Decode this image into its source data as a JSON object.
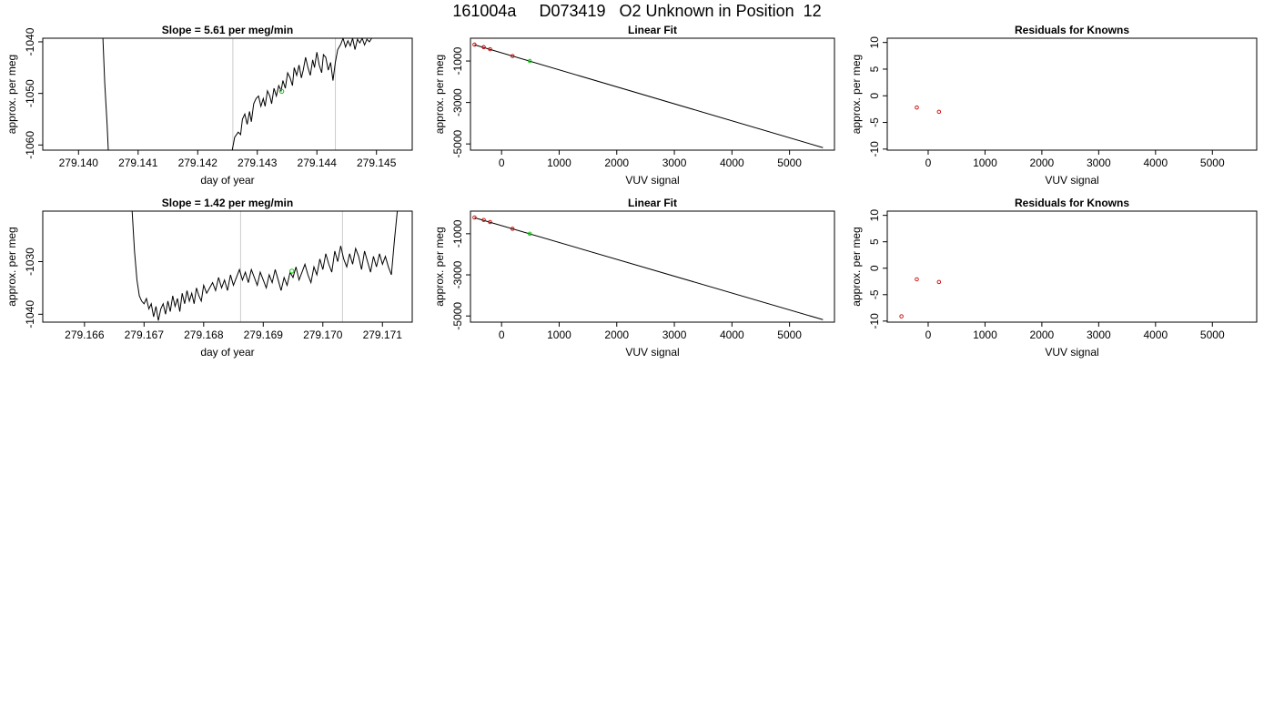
{
  "page": {
    "title": "161004a     D073419   O2 Unknown in Position  12"
  },
  "chart_data": [
    {
      "type": "line",
      "title": "Slope =  5.61  per meg/min",
      "xlabel": "day of year",
      "ylabel": "approx. per meg",
      "xlim": [
        279.1394,
        279.1456
      ],
      "ylim": [
        -1061,
        -1039.3
      ],
      "xticks": [
        279.14,
        279.141,
        279.142,
        279.143,
        279.144,
        279.145
      ],
      "xtick_labels": [
        "279.140",
        "279.141",
        "279.142",
        "279.143",
        "279.144",
        "279.145"
      ],
      "yticks": [
        -1060,
        -1050,
        -1040
      ],
      "ytick_labels": [
        "-1060",
        "-1050",
        "-1040"
      ],
      "vlines": [
        279.14259,
        279.14431
      ],
      "series": [
        {
          "color": "#000000",
          "x": [
            279.14041,
            279.14044,
            279.14048,
            279.1405,
            279.14258,
            279.14262,
            279.14268,
            279.14272,
            279.14275,
            279.14279,
            279.14283,
            279.14287,
            279.1429,
            279.14294,
            279.14298,
            279.14302,
            279.14306,
            279.1431,
            279.14313,
            279.14317,
            279.14321,
            279.14324,
            279.14328,
            279.14332,
            279.14336,
            279.1434,
            279.14343,
            279.14347,
            279.14351,
            279.14355,
            279.14359,
            279.14362,
            279.14366,
            279.1437,
            279.14374,
            279.14377,
            279.14381,
            279.14385,
            279.14389,
            279.14393,
            279.14396,
            279.144,
            279.14404,
            279.14408,
            279.14411,
            279.14415,
            279.14419,
            279.14423,
            279.14427,
            279.14431,
            279.14435,
            279.1444,
            279.14444,
            279.14448,
            279.14452,
            279.14456,
            279.1446,
            279.14464,
            279.14468,
            279.14472,
            279.14476,
            279.1448,
            279.14484,
            279.14488,
            279.14492
          ],
          "y": [
            -1039.3,
            -1048.0,
            -1056.0,
            -1061.0,
            -1061.0,
            -1058.5,
            -1057.5,
            -1058.0,
            -1055.0,
            -1054.0,
            -1056.0,
            -1053.5,
            -1055.5,
            -1052.0,
            -1051.0,
            -1050.5,
            -1052.5,
            -1051.0,
            -1052.5,
            -1049.5,
            -1050.5,
            -1052.0,
            -1049.0,
            -1050.5,
            -1048.5,
            -1049.5,
            -1047.5,
            -1049.0,
            -1046.0,
            -1047.0,
            -1048.5,
            -1045.0,
            -1046.5,
            -1044.5,
            -1047.0,
            -1045.5,
            -1043.0,
            -1045.0,
            -1046.5,
            -1043.5,
            -1045.0,
            -1042.0,
            -1044.5,
            -1046.0,
            -1042.5,
            -1043.0,
            -1045.5,
            -1044.0,
            -1047.5,
            -1044.0,
            -1041.5,
            -1040.5,
            -1039.3,
            -1041.0,
            -1039.8,
            -1040.8,
            -1039.3,
            -1041.5,
            -1039.5,
            -1040.2,
            -1039.3,
            -1040.6,
            -1039.5,
            -1040.0,
            -1039.3
          ]
        }
      ],
      "markers": [
        {
          "x": 279.14341,
          "y": -1049.6,
          "color": "#00cc00",
          "shape": "circle"
        }
      ]
    },
    {
      "type": "scatter",
      "title": "Linear Fit",
      "xlabel": "VUV signal",
      "ylabel": "approx. per meg",
      "xlim": [
        -540,
        5780
      ],
      "ylim": [
        -5300,
        100
      ],
      "xticks": [
        0,
        1000,
        2000,
        3000,
        4000,
        5000
      ],
      "xtick_labels": [
        "0",
        "1000",
        "2000",
        "3000",
        "4000",
        "5000"
      ],
      "yticks": [
        -5000,
        -3000,
        -1000
      ],
      "ytick_labels": [
        "-5000",
        "-3000",
        "-1000"
      ],
      "fit_line": {
        "x": [
          -470,
          5580
        ],
        "y": [
          -220,
          -5180
        ]
      },
      "points": [
        {
          "x": -470,
          "y": -210,
          "color": "#cc0000"
        },
        {
          "x": -310,
          "y": -330,
          "color": "#cc0000"
        },
        {
          "x": -200,
          "y": -430,
          "color": "#cc0000"
        },
        {
          "x": 190,
          "y": -760,
          "color": "#cc0000"
        },
        {
          "x": 490,
          "y": -1000,
          "color": "#00cc00"
        }
      ]
    },
    {
      "type": "scatter",
      "title": "Residuals for Knowns",
      "xlabel": "VUV signal",
      "ylabel": "approx. per meg",
      "xlim": [
        -720,
        5780
      ],
      "ylim": [
        -10.2,
        10.8
      ],
      "xticks": [
        0,
        1000,
        2000,
        3000,
        4000,
        5000
      ],
      "xtick_labels": [
        "0",
        "1000",
        "2000",
        "3000",
        "4000",
        "5000"
      ],
      "yticks": [
        -10,
        -5,
        0,
        5,
        10
      ],
      "ytick_labels": [
        "-10",
        "-5",
        "0",
        "5",
        "10"
      ],
      "points": [
        {
          "x": -200,
          "y": -2.2,
          "color": "#cc0000"
        },
        {
          "x": 190,
          "y": -3.0,
          "color": "#cc0000"
        }
      ]
    },
    {
      "type": "line",
      "title": "Slope =  1.42  per meg/min",
      "xlabel": "day of year",
      "ylabel": "approx. per meg",
      "xlim": [
        279.1653,
        279.1715
      ],
      "ylim": [
        -1041.5,
        -1020.4
      ],
      "xticks": [
        279.166,
        279.167,
        279.168,
        279.169,
        279.17,
        279.171
      ],
      "xtick_labels": [
        "279.166",
        "279.167",
        "279.168",
        "279.169",
        "279.170",
        "279.171"
      ],
      "yticks": [
        -1040,
        -1030
      ],
      "ytick_labels": [
        "-1040",
        "-1030"
      ],
      "vlines": [
        279.16862,
        279.17033
      ],
      "series": [
        {
          "color": "#000000",
          "x": [
            279.1668,
            279.16684,
            279.16688,
            279.16692,
            279.16696,
            279.167,
            279.16704,
            279.16708,
            279.16712,
            279.16716,
            279.1672,
            279.16724,
            279.16728,
            279.16732,
            279.16736,
            279.1674,
            279.16744,
            279.16748,
            279.16752,
            279.16756,
            279.1676,
            279.16764,
            279.16768,
            279.16772,
            279.16776,
            279.1678,
            279.16784,
            279.16788,
            279.16792,
            279.16796,
            279.168,
            279.16805,
            279.1681,
            279.16815,
            279.1682,
            279.16825,
            279.1683,
            279.16835,
            279.1684,
            279.16845,
            279.1685,
            279.16855,
            279.1686,
            279.16865,
            279.1687,
            279.16875,
            279.1688,
            279.16885,
            279.1689,
            279.16895,
            279.169,
            279.16905,
            279.1691,
            279.16915,
            279.1692,
            279.16925,
            279.1693,
            279.16935,
            279.1694,
            279.16945,
            279.1695,
            279.16955,
            279.1696,
            279.16965,
            279.1697,
            279.16975,
            279.1698,
            279.16985,
            279.1699,
            279.16995,
            279.17,
            279.17005,
            279.1701,
            279.17015,
            279.1702,
            279.17025,
            279.1703,
            279.17035,
            279.1704,
            279.17045,
            279.1705,
            279.17055,
            279.1706,
            279.17065,
            279.1707,
            279.17075,
            279.1708,
            279.17085,
            279.1709,
            279.17095,
            279.171,
            279.17105,
            279.1711,
            279.17115,
            279.1712,
            279.17125
          ],
          "y": [
            -1020.4,
            -1028.0,
            -1033.5,
            -1036.5,
            -1037.5,
            -1038.0,
            -1037.0,
            -1039.0,
            -1038.0,
            -1040.5,
            -1038.5,
            -1041.2,
            -1039.0,
            -1038.0,
            -1040.0,
            -1037.5,
            -1039.5,
            -1036.5,
            -1038.5,
            -1037.0,
            -1039.5,
            -1036.0,
            -1038.0,
            -1035.5,
            -1037.5,
            -1036.0,
            -1038.0,
            -1035.0,
            -1036.5,
            -1037.5,
            -1034.5,
            -1036.0,
            -1035.0,
            -1034.0,
            -1035.5,
            -1033.0,
            -1035.0,
            -1033.5,
            -1035.5,
            -1032.5,
            -1034.5,
            -1033.0,
            -1031.5,
            -1033.5,
            -1032.0,
            -1034.0,
            -1031.5,
            -1033.0,
            -1034.5,
            -1032.0,
            -1033.5,
            -1035.0,
            -1032.5,
            -1034.0,
            -1031.5,
            -1033.5,
            -1035.5,
            -1033.0,
            -1034.5,
            -1032.0,
            -1033.0,
            -1031.0,
            -1033.5,
            -1032.0,
            -1030.5,
            -1032.5,
            -1034.0,
            -1031.0,
            -1032.5,
            -1029.5,
            -1031.5,
            -1028.5,
            -1030.5,
            -1032.0,
            -1028.0,
            -1030.0,
            -1027.0,
            -1029.5,
            -1031.0,
            -1028.5,
            -1030.5,
            -1027.5,
            -1029.0,
            -1031.5,
            -1028.0,
            -1030.0,
            -1032.0,
            -1029.0,
            -1031.0,
            -1028.5,
            -1030.5,
            -1029.0,
            -1031.0,
            -1032.5,
            -1026.0,
            -1020.4
          ]
        }
      ],
      "markers": [
        {
          "x": 279.16948,
          "y": -1031.8,
          "color": "#00cc00",
          "shape": "circle"
        }
      ]
    },
    {
      "type": "scatter",
      "title": "Linear Fit",
      "xlabel": "VUV signal",
      "ylabel": "approx. per meg",
      "xlim": [
        -540,
        5780
      ],
      "ylim": [
        -5300,
        100
      ],
      "xticks": [
        0,
        1000,
        2000,
        3000,
        4000,
        5000
      ],
      "xtick_labels": [
        "0",
        "1000",
        "2000",
        "3000",
        "4000",
        "5000"
      ],
      "yticks": [
        -5000,
        -3000,
        -1000
      ],
      "ytick_labels": [
        "-5000",
        "-3000",
        "-1000"
      ],
      "fit_line": {
        "x": [
          -470,
          5580
        ],
        "y": [
          -220,
          -5180
        ]
      },
      "points": [
        {
          "x": -470,
          "y": -210,
          "color": "#cc0000"
        },
        {
          "x": -310,
          "y": -330,
          "color": "#cc0000"
        },
        {
          "x": -200,
          "y": -430,
          "color": "#cc0000"
        },
        {
          "x": 190,
          "y": -760,
          "color": "#cc0000"
        },
        {
          "x": 490,
          "y": -1000,
          "color": "#00cc00"
        }
      ]
    },
    {
      "type": "scatter",
      "title": "Residuals for Knowns",
      "xlabel": "VUV signal",
      "ylabel": "approx. per meg",
      "xlim": [
        -720,
        5780
      ],
      "ylim": [
        -10.2,
        10.8
      ],
      "xticks": [
        0,
        1000,
        2000,
        3000,
        4000,
        5000
      ],
      "xtick_labels": [
        "0",
        "1000",
        "2000",
        "3000",
        "4000",
        "5000"
      ],
      "yticks": [
        -10,
        -5,
        0,
        5,
        10
      ],
      "ytick_labels": [
        "-10",
        "-5",
        "0",
        "5",
        "10"
      ],
      "points": [
        {
          "x": -470,
          "y": -9.1,
          "color": "#cc0000"
        },
        {
          "x": -200,
          "y": -2.1,
          "color": "#cc0000"
        },
        {
          "x": 190,
          "y": -2.6,
          "color": "#cc0000"
        }
      ]
    }
  ]
}
